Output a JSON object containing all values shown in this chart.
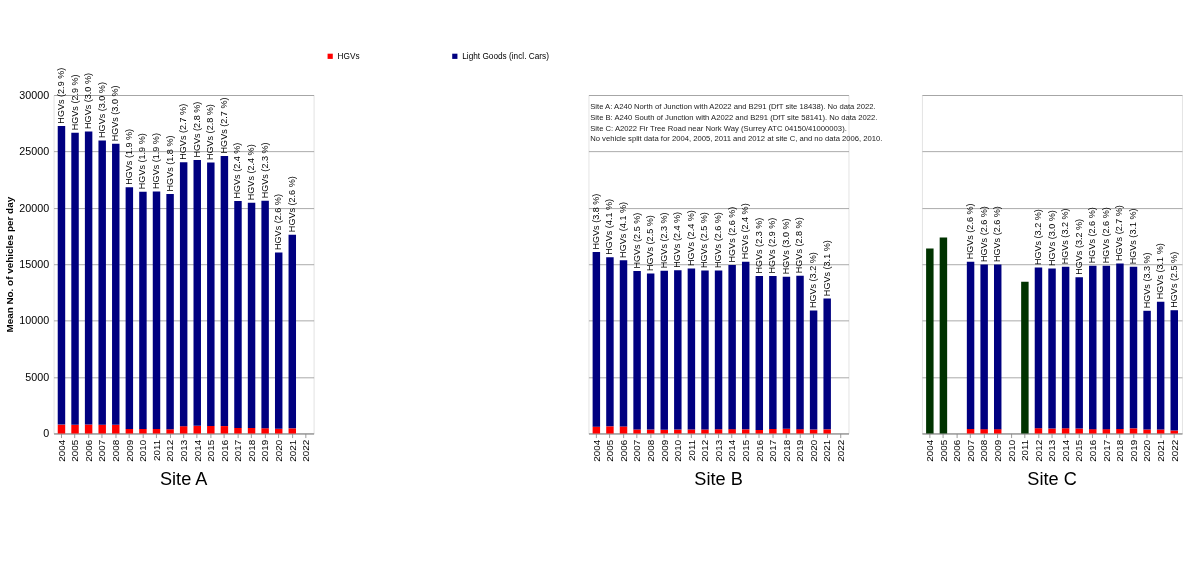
{
  "chart_data": [
    {
      "type": "bar",
      "title": "Site A",
      "ylabel": "Mean No. of vehicles per day",
      "stacked": true,
      "grid": "y",
      "legend": "top",
      "categories": [
        "2004",
        "2005",
        "2006",
        "2007",
        "2008",
        "2009",
        "2010",
        "2011",
        "2012",
        "2013",
        "2014",
        "2015",
        "2016",
        "2017",
        "2018",
        "2019",
        "2020",
        "2021",
        "2022"
      ],
      "ylim": [
        0,
        30000
      ],
      "yticks": [
        0,
        5000,
        10000,
        15000,
        20000,
        25000,
        30000
      ],
      "series": [
        {
          "name": "HGVs",
          "color": "#ff0000",
          "values": [
            790,
            770,
            800,
            780,
            770,
            410,
            410,
            410,
            380,
            650,
            680,
            670,
            660,
            490,
            490,
            470,
            420,
            460,
            null
          ]
        },
        {
          "name": "Light Goods (incl. Cars)",
          "color": "#000080",
          "values": [
            26460,
            25890,
            25980,
            25200,
            24910,
            21420,
            21030,
            21050,
            20860,
            23400,
            23560,
            23350,
            23950,
            20120,
            19970,
            20160,
            15630,
            17170,
            null
          ]
        }
      ],
      "annotations": [
        {
          "text": "HGVs (2.9 %)",
          "x": "2004",
          "y": 27250
        },
        {
          "text": "HGVs (2.9 %)",
          "x": "2005",
          "y": 26660
        },
        {
          "text": "HGVs (3.0 %)",
          "x": "2006",
          "y": 26780
        },
        {
          "text": "HGVs (3.0 %)",
          "x": "2007",
          "y": 25980
        },
        {
          "text": "HGVs (3.0 %)",
          "x": "2008",
          "y": 25680
        },
        {
          "text": "HGVs (1.9 %)",
          "x": "2009",
          "y": 21830
        },
        {
          "text": "HGVs (1.9 %)",
          "x": "2010",
          "y": 21440
        },
        {
          "text": "HGVs (1.9 %)",
          "x": "2011",
          "y": 21460
        },
        {
          "text": "HGVs (1.8 %)",
          "x": "2012",
          "y": 21240
        },
        {
          "text": "HGVs (2.7 %)",
          "x": "2013",
          "y": 24050
        },
        {
          "text": "HGVs (2.8 %)",
          "x": "2014",
          "y": 24240
        },
        {
          "text": "HGVs (2.8 %)",
          "x": "2015",
          "y": 24020
        },
        {
          "text": "HGVs (2.7 %)",
          "x": "2016",
          "y": 24610
        },
        {
          "text": "HGVs (2.4 %)",
          "x": "2017",
          "y": 20610
        },
        {
          "text": "HGVs (2.4 %)",
          "x": "2018",
          "y": 20460
        },
        {
          "text": "HGVs (2.3 %)",
          "x": "2019",
          "y": 20630
        },
        {
          "text": "HGVs (2.6 %)",
          "x": "2020",
          "y": 16050
        },
        {
          "text": "HGVs (2.6 %)",
          "x": "2021",
          "y": 17630
        }
      ]
    },
    {
      "type": "bar",
      "title": "Site B",
      "stacked": true,
      "grid": "y",
      "tick_labels": "x",
      "categories": [
        "2004",
        "2005",
        "2006",
        "2007",
        "2008",
        "2009",
        "2010",
        "2011",
        "2012",
        "2013",
        "2014",
        "2015",
        "2016",
        "2017",
        "2018",
        "2019",
        "2020",
        "2021",
        "2022"
      ],
      "ylim": [
        0,
        30000
      ],
      "yticks": [
        0,
        5000,
        10000,
        15000,
        20000,
        25000,
        30000
      ],
      "series": [
        {
          "color": "#ff0000",
          "values": [
            610,
            640,
            630,
            360,
            350,
            330,
            350,
            350,
            360,
            380,
            390,
            370,
            320,
            400,
            420,
            390,
            350,
            370,
            null
          ]
        },
        {
          "color": "#000080",
          "values": [
            15480,
            14980,
            14720,
            14040,
            13830,
            14100,
            14120,
            14270,
            14090,
            14070,
            14550,
            14860,
            13640,
            13560,
            13470,
            13600,
            10550,
            11590,
            null
          ]
        }
      ],
      "annotations": [
        "Site A: A240 North of Junction with A2022 and B291 (DfT site 18438). No data 2022.",
        "Site B: A240 South of Junction with A2022 and B291 (DfT site 58141). No data 2022.",
        "Site C: A2022 Fir Tree Road near Nork Way (Surrey ATC 04150/41000003).",
        "No vehicle split data for 2004, 2005, 2011 and 2012 at site C, and no data 2006, 2010.",
        {
          "text": "HGVs (3.8 %)",
          "x": "2004",
          "y": 16090
        },
        {
          "text": "HGVs (4.1 %)",
          "x": "2005",
          "y": 15620
        },
        {
          "text": "HGVs (4.1 %)",
          "x": "2006",
          "y": 15350
        },
        {
          "text": "HGVs (2.5 %)",
          "x": "2007",
          "y": 14400
        },
        {
          "text": "HGVs (2.5 %)",
          "x": "2008",
          "y": 14180
        },
        {
          "text": "HGVs (2.3 %)",
          "x": "2009",
          "y": 14430
        },
        {
          "text": "HGVs (2.4 %)",
          "x": "2010",
          "y": 14470
        },
        {
          "text": "HGVs (2.4 %)",
          "x": "2011",
          "y": 14620
        },
        {
          "text": "HGVs (2.5 %)",
          "x": "2012",
          "y": 14450
        },
        {
          "text": "HGVs (2.6 %)",
          "x": "2013",
          "y": 14450
        },
        {
          "text": "HGVs (2.6 %)",
          "x": "2014",
          "y": 14940
        },
        {
          "text": "HGVs (2.4 %)",
          "x": "2015",
          "y": 15230
        },
        {
          "text": "HGVs (2.3 %)",
          "x": "2016",
          "y": 13960
        },
        {
          "text": "HGVs (2.9 %)",
          "x": "2017",
          "y": 13960
        },
        {
          "text": "HGVs (3.0 %)",
          "x": "2018",
          "y": 13890
        },
        {
          "text": "HGVs (2.8 %)",
          "x": "2019",
          "y": 13990
        },
        {
          "text": "HGVs (3.2 %)",
          "x": "2020",
          "y": 10900
        },
        {
          "text": "HGVs (3.1 %)",
          "x": "2021",
          "y": 11960
        }
      ]
    },
    {
      "type": "bar",
      "title": "Site C",
      "stacked": true,
      "grid": "y",
      "tick_labels": "x",
      "categories": [
        "2004",
        "2005",
        "2006",
        "2007",
        "2008",
        "2009",
        "2010",
        "2011",
        "2012",
        "2013",
        "2014",
        "2015",
        "2016",
        "2017",
        "2018",
        "2019",
        "2020",
        "2021",
        "2022"
      ],
      "ylim": [
        0,
        30000
      ],
      "yticks": [
        0,
        5000,
        10000,
        15000,
        20000,
        25000,
        30000
      ],
      "series": [
        {
          "color": "#003300",
          "values": [
            16400,
            17380,
            null,
            null,
            null,
            null,
            null,
            13450,
            null,
            null,
            null,
            null,
            null,
            null,
            null,
            null,
            null,
            null,
            null
          ]
        },
        {
          "color": "#ff0000",
          "values": [
            null,
            null,
            null,
            400,
            390,
            390,
            null,
            null,
            470,
            440,
            470,
            440,
            390,
            390,
            410,
            460,
            360,
            360,
            270
          ]
        },
        {
          "color": "#000080",
          "values": [
            null,
            null,
            null,
            14820,
            14590,
            14590,
            null,
            null,
            14240,
            14190,
            14310,
            13410,
            14490,
            14490,
            14660,
            14320,
            10520,
            11330,
            10660
          ]
        }
      ],
      "annotations": [
        {
          "text": "HGVs (2.6 %)",
          "x": "2007",
          "y": 15220
        },
        {
          "text": "HGVs (2.6 %)",
          "x": "2008",
          "y": 14980
        },
        {
          "text": "HGVs (2.6 %)",
          "x": "2009",
          "y": 14980
        },
        {
          "text": "HGVs (3.2 %)",
          "x": "2012",
          "y": 14710
        },
        {
          "text": "HGVs (3.0 %)",
          "x": "2013",
          "y": 14630
        },
        {
          "text": "HGVs (3.2 %)",
          "x": "2014",
          "y": 14780
        },
        {
          "text": "HGVs (3.2 %)",
          "x": "2015",
          "y": 13850
        },
        {
          "text": "HGVs (2.6 %)",
          "x": "2016",
          "y": 14880
        },
        {
          "text": "HGVs (2.6 %)",
          "x": "2017",
          "y": 14880
        },
        {
          "text": "HGVs (2.7 %)",
          "x": "2018",
          "y": 15070
        },
        {
          "text": "HGVs (3.1 %)",
          "x": "2019",
          "y": 14780
        },
        {
          "text": "HGVs (3.3 %)",
          "x": "2020",
          "y": 10880
        },
        {
          "text": "HGVs (3.1 %)",
          "x": "2021",
          "y": 11690
        },
        {
          "text": "HGVs (2.5 %)",
          "x": "2022",
          "y": 10930
        }
      ]
    }
  ]
}
